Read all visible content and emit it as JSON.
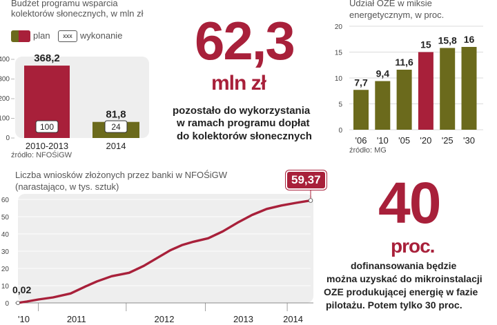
{
  "colors": {
    "plan": "#a8203a",
    "wykonanie": "#6b6a1c",
    "panel": "#eeeeee",
    "accent": "#a8203a"
  },
  "budget": {
    "title_line1": "Budżet programu wsparcia",
    "title_line2": "kolektorów słonecznych, w mln zł",
    "legend_plan": "plan",
    "legend_wyk_box": "xxx",
    "legend_wyk": "wykonanie",
    "source": "źródło: NFOŚiGW"
  },
  "headline": {
    "value": "62,3",
    "unit": "mln zł",
    "desc_line1": "pozostało do wykorzystania",
    "desc_line2": "w ramach programu dopłat",
    "desc_line3": "do kolektorów słonecznych"
  },
  "oze": {
    "title_line1": "Udział OZE w miksie",
    "title_line2": "energetycznym, w proc.",
    "source": "źródło: MG"
  },
  "wnioski": {
    "title_line1": "Liczba wniosków złożonych przez banki w NFOŚiGW",
    "title_line2": "(narastająco, w tys. sztuk)",
    "start_label": "0,02",
    "end_label": "59,37"
  },
  "promo": {
    "value": "40",
    "unit": "proc.",
    "desc_line1": "dofinansowania będzie",
    "desc_line2": "można uzyskać do mikroinstalacji",
    "desc_line3": "OZE produkującej energię w fazie",
    "desc_line4": "pilotażu. Potem tylko 30 proc."
  },
  "chart_data": [
    {
      "type": "bar",
      "categories": [
        "2010-2013",
        "2014"
      ],
      "series": [
        {
          "name": "plan",
          "values": [
            368.2,
            81.8
          ],
          "labels": [
            "368,2",
            "81,8"
          ]
        },
        {
          "name": "wykonanie",
          "values": [
            100,
            24
          ],
          "labels": [
            "100",
            "24"
          ]
        }
      ],
      "ylim": [
        0,
        400
      ],
      "yticks": [
        0,
        100,
        200,
        300,
        400
      ],
      "bar_colors": [
        "#a8203a",
        "#6b6a1c"
      ]
    },
    {
      "type": "bar",
      "categories": [
        "'06",
        "'10",
        "'05",
        "'20",
        "'25",
        "'30"
      ],
      "values": [
        7.7,
        9.4,
        11.6,
        15,
        15.8,
        16
      ],
      "labels": [
        "7,7",
        "9,4",
        "11,6",
        "15",
        "15,8",
        "16"
      ],
      "bar_colors": [
        "#6b6a1c",
        "#6b6a1c",
        "#6b6a1c",
        "#a8203a",
        "#6b6a1c",
        "#6b6a1c"
      ],
      "ylim": [
        0,
        20
      ],
      "yticks": [
        0,
        5,
        10,
        15,
        20
      ]
    },
    {
      "type": "line",
      "xticks": [
        "'10",
        "2011",
        "2012",
        "2013",
        "2014"
      ],
      "x": [
        0,
        0.03,
        0.07,
        0.12,
        0.18,
        0.23,
        0.27,
        0.32,
        0.38,
        0.43,
        0.48,
        0.52,
        0.56,
        0.6,
        0.65,
        0.7,
        0.75,
        0.8,
        0.85,
        0.9,
        0.95,
        1
      ],
      "y": [
        0.02,
        0.8,
        2.0,
        3.2,
        5.5,
        9.5,
        12.5,
        15.5,
        17.5,
        21.5,
        26.5,
        30.5,
        33.5,
        35.5,
        37.5,
        41.5,
        46.5,
        51.0,
        54.5,
        56.5,
        58.0,
        59.37
      ],
      "ylim": [
        0,
        60
      ],
      "yticks": [
        0,
        10,
        20,
        30,
        40,
        50,
        60
      ],
      "color": "#a8203a"
    }
  ]
}
